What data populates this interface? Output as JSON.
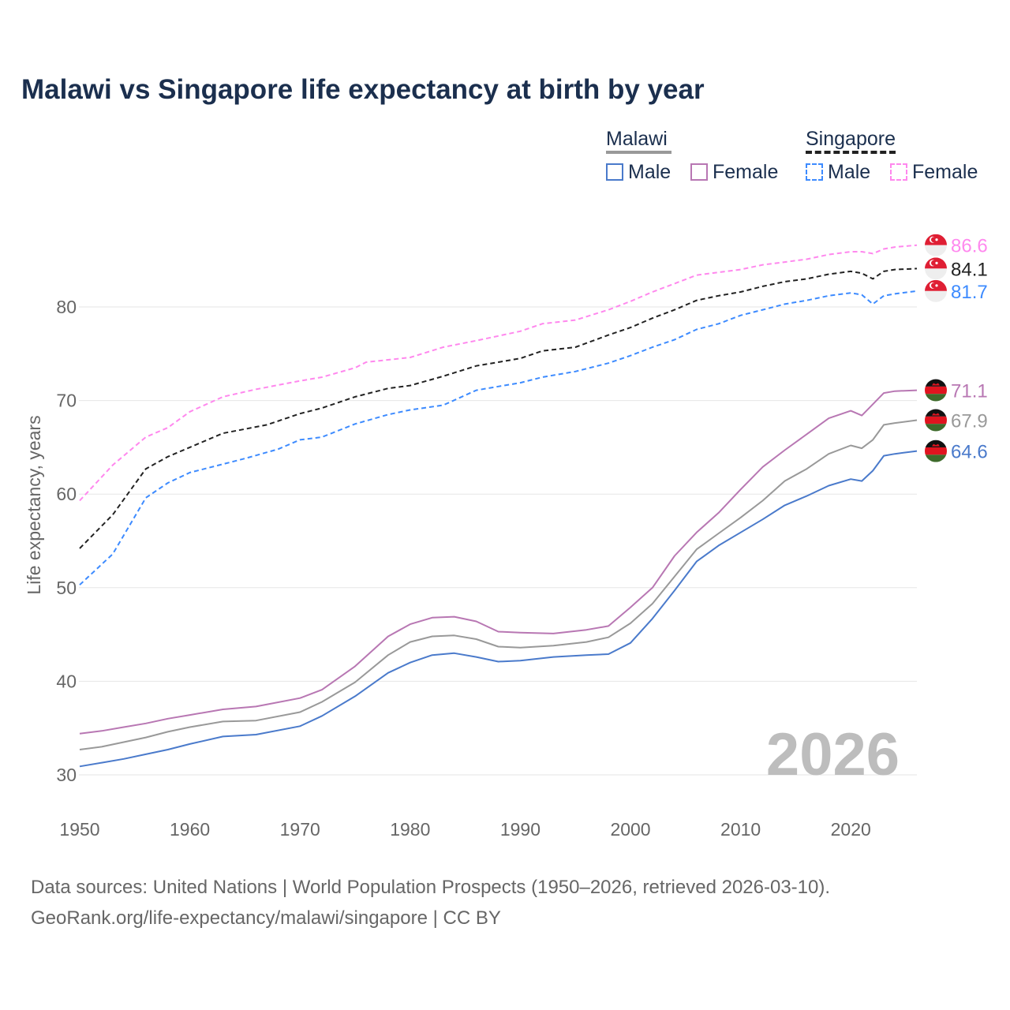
{
  "chart_data": {
    "type": "line",
    "title": "Malawi vs Singapore life expectancy at birth by year",
    "xlabel": "",
    "ylabel": "Life expectancy, years",
    "xlim": [
      1950,
      2026
    ],
    "ylim": [
      28,
      90
    ],
    "x_ticks": [
      "1950",
      "1960",
      "1970",
      "1980",
      "1990",
      "2000",
      "2010",
      "2020"
    ],
    "y_ticks": [
      "30",
      "40",
      "50",
      "60",
      "70",
      "80"
    ],
    "grid": true,
    "watermark_year": "2026",
    "legend": {
      "placement": "top-right",
      "groups": [
        {
          "name": "Malawi",
          "line_color": "#999999",
          "items": [
            "Male",
            "Female"
          ]
        },
        {
          "name": "Singapore",
          "line_color": "#222222",
          "items": [
            "Male",
            "Female"
          ]
        }
      ]
    },
    "series": [
      {
        "name": "Singapore Female",
        "country": "Singapore",
        "color": "#ff88ee",
        "dashed": true,
        "end_label": "86.6",
        "points": [
          [
            1950,
            59.3
          ],
          [
            1953,
            63.1
          ],
          [
            1956,
            66.1
          ],
          [
            1958,
            67.1
          ],
          [
            1960,
            68.8
          ],
          [
            1963,
            70.4
          ],
          [
            1966,
            71.2
          ],
          [
            1970,
            72.1
          ],
          [
            1972,
            72.5
          ],
          [
            1975,
            73.5
          ],
          [
            1976,
            74.1
          ],
          [
            1980,
            74.6
          ],
          [
            1983,
            75.7
          ],
          [
            1986,
            76.4
          ],
          [
            1988,
            76.9
          ],
          [
            1990,
            77.4
          ],
          [
            1992,
            78.2
          ],
          [
            1995,
            78.6
          ],
          [
            1998,
            79.7
          ],
          [
            2000,
            80.6
          ],
          [
            2002,
            81.6
          ],
          [
            2004,
            82.5
          ],
          [
            2006,
            83.4
          ],
          [
            2008,
            83.7
          ],
          [
            2010,
            84.0
          ],
          [
            2012,
            84.5
          ],
          [
            2014,
            84.8
          ],
          [
            2016,
            85.1
          ],
          [
            2018,
            85.6
          ],
          [
            2020,
            85.9
          ],
          [
            2021,
            85.9
          ],
          [
            2022,
            85.7
          ],
          [
            2023,
            86.2
          ],
          [
            2024,
            86.4
          ],
          [
            2026,
            86.6
          ]
        ]
      },
      {
        "name": "Singapore Total",
        "country": "Singapore",
        "color": "#222222",
        "dashed": true,
        "end_label": "84.1",
        "points": [
          [
            1950,
            54.2
          ],
          [
            1953,
            57.8
          ],
          [
            1956,
            62.7
          ],
          [
            1958,
            64.0
          ],
          [
            1960,
            65.0
          ],
          [
            1963,
            66.5
          ],
          [
            1967,
            67.4
          ],
          [
            1970,
            68.6
          ],
          [
            1972,
            69.2
          ],
          [
            1975,
            70.4
          ],
          [
            1978,
            71.3
          ],
          [
            1980,
            71.6
          ],
          [
            1983,
            72.6
          ],
          [
            1986,
            73.7
          ],
          [
            1988,
            74.1
          ],
          [
            1990,
            74.5
          ],
          [
            1992,
            75.3
          ],
          [
            1995,
            75.7
          ],
          [
            1998,
            77.0
          ],
          [
            2000,
            77.8
          ],
          [
            2002,
            78.8
          ],
          [
            2004,
            79.7
          ],
          [
            2006,
            80.7
          ],
          [
            2008,
            81.2
          ],
          [
            2010,
            81.6
          ],
          [
            2012,
            82.2
          ],
          [
            2014,
            82.7
          ],
          [
            2016,
            83.0
          ],
          [
            2018,
            83.5
          ],
          [
            2020,
            83.8
          ],
          [
            2021,
            83.6
          ],
          [
            2022,
            83.0
          ],
          [
            2023,
            83.8
          ],
          [
            2024,
            84.0
          ],
          [
            2026,
            84.1
          ]
        ]
      },
      {
        "name": "Singapore Male",
        "country": "Singapore",
        "color": "#3d8bff",
        "dashed": true,
        "end_label": "81.7",
        "points": [
          [
            1950,
            50.3
          ],
          [
            1953,
            53.6
          ],
          [
            1956,
            59.6
          ],
          [
            1958,
            61.2
          ],
          [
            1960,
            62.3
          ],
          [
            1965,
            63.8
          ],
          [
            1968,
            64.8
          ],
          [
            1970,
            65.8
          ],
          [
            1972,
            66.1
          ],
          [
            1975,
            67.5
          ],
          [
            1978,
            68.5
          ],
          [
            1980,
            69.0
          ],
          [
            1983,
            69.5
          ],
          [
            1986,
            71.1
          ],
          [
            1988,
            71.5
          ],
          [
            1990,
            71.9
          ],
          [
            1992,
            72.5
          ],
          [
            1995,
            73.1
          ],
          [
            1998,
            74.0
          ],
          [
            2000,
            74.8
          ],
          [
            2002,
            75.7
          ],
          [
            2004,
            76.5
          ],
          [
            2006,
            77.6
          ],
          [
            2008,
            78.2
          ],
          [
            2010,
            79.1
          ],
          [
            2012,
            79.7
          ],
          [
            2014,
            80.3
          ],
          [
            2016,
            80.7
          ],
          [
            2018,
            81.2
          ],
          [
            2020,
            81.5
          ],
          [
            2021,
            81.3
          ],
          [
            2022,
            80.3
          ],
          [
            2023,
            81.2
          ],
          [
            2024,
            81.4
          ],
          [
            2026,
            81.7
          ]
        ]
      },
      {
        "name": "Malawi Female",
        "country": "Malawi",
        "color": "#b877b3",
        "dashed": false,
        "end_label": "71.1",
        "points": [
          [
            1950,
            34.4
          ],
          [
            1952,
            34.7
          ],
          [
            1954,
            35.1
          ],
          [
            1956,
            35.5
          ],
          [
            1958,
            36.0
          ],
          [
            1960,
            36.4
          ],
          [
            1963,
            37.0
          ],
          [
            1966,
            37.3
          ],
          [
            1970,
            38.2
          ],
          [
            1972,
            39.1
          ],
          [
            1975,
            41.6
          ],
          [
            1978,
            44.8
          ],
          [
            1980,
            46.1
          ],
          [
            1982,
            46.8
          ],
          [
            1984,
            46.9
          ],
          [
            1986,
            46.4
          ],
          [
            1988,
            45.3
          ],
          [
            1990,
            45.2
          ],
          [
            1993,
            45.1
          ],
          [
            1996,
            45.5
          ],
          [
            1998,
            45.9
          ],
          [
            2000,
            47.9
          ],
          [
            2002,
            50.0
          ],
          [
            2004,
            53.4
          ],
          [
            2006,
            55.9
          ],
          [
            2008,
            58.0
          ],
          [
            2010,
            60.5
          ],
          [
            2012,
            62.9
          ],
          [
            2014,
            64.7
          ],
          [
            2016,
            66.4
          ],
          [
            2018,
            68.1
          ],
          [
            2020,
            68.9
          ],
          [
            2021,
            68.4
          ],
          [
            2022,
            69.6
          ],
          [
            2023,
            70.8
          ],
          [
            2024,
            71.0
          ],
          [
            2026,
            71.1
          ]
        ]
      },
      {
        "name": "Malawi Total",
        "country": "Malawi",
        "color": "#999999",
        "dashed": false,
        "end_label": "67.9",
        "points": [
          [
            1950,
            32.7
          ],
          [
            1952,
            33.0
          ],
          [
            1954,
            33.5
          ],
          [
            1956,
            34.0
          ],
          [
            1958,
            34.6
          ],
          [
            1960,
            35.1
          ],
          [
            1963,
            35.7
          ],
          [
            1966,
            35.8
          ],
          [
            1970,
            36.7
          ],
          [
            1972,
            37.8
          ],
          [
            1975,
            39.9
          ],
          [
            1978,
            42.8
          ],
          [
            1980,
            44.2
          ],
          [
            1982,
            44.8
          ],
          [
            1984,
            44.9
          ],
          [
            1986,
            44.5
          ],
          [
            1988,
            43.7
          ],
          [
            1990,
            43.6
          ],
          [
            1993,
            43.8
          ],
          [
            1996,
            44.2
          ],
          [
            1998,
            44.7
          ],
          [
            2000,
            46.2
          ],
          [
            2002,
            48.3
          ],
          [
            2004,
            51.2
          ],
          [
            2006,
            54.1
          ],
          [
            2008,
            55.8
          ],
          [
            2010,
            57.5
          ],
          [
            2012,
            59.3
          ],
          [
            2014,
            61.4
          ],
          [
            2016,
            62.7
          ],
          [
            2018,
            64.3
          ],
          [
            2020,
            65.2
          ],
          [
            2021,
            64.9
          ],
          [
            2022,
            65.8
          ],
          [
            2023,
            67.4
          ],
          [
            2024,
            67.6
          ],
          [
            2026,
            67.9
          ]
        ]
      },
      {
        "name": "Malawi Male",
        "country": "Malawi",
        "color": "#4a7acb",
        "dashed": false,
        "end_label": "64.6",
        "points": [
          [
            1950,
            30.9
          ],
          [
            1952,
            31.3
          ],
          [
            1954,
            31.7
          ],
          [
            1956,
            32.2
          ],
          [
            1958,
            32.7
          ],
          [
            1960,
            33.3
          ],
          [
            1963,
            34.1
          ],
          [
            1966,
            34.3
          ],
          [
            1970,
            35.2
          ],
          [
            1972,
            36.3
          ],
          [
            1975,
            38.4
          ],
          [
            1978,
            40.9
          ],
          [
            1980,
            42.0
          ],
          [
            1982,
            42.8
          ],
          [
            1984,
            43.0
          ],
          [
            1986,
            42.6
          ],
          [
            1988,
            42.1
          ],
          [
            1990,
            42.2
          ],
          [
            1993,
            42.6
          ],
          [
            1996,
            42.8
          ],
          [
            1998,
            42.9
          ],
          [
            2000,
            44.1
          ],
          [
            2002,
            46.7
          ],
          [
            2004,
            49.7
          ],
          [
            2006,
            52.8
          ],
          [
            2008,
            54.5
          ],
          [
            2010,
            55.9
          ],
          [
            2012,
            57.3
          ],
          [
            2014,
            58.8
          ],
          [
            2016,
            59.8
          ],
          [
            2018,
            60.9
          ],
          [
            2020,
            61.6
          ],
          [
            2021,
            61.4
          ],
          [
            2022,
            62.5
          ],
          [
            2023,
            64.1
          ],
          [
            2024,
            64.3
          ],
          [
            2026,
            64.6
          ]
        ]
      }
    ]
  },
  "footer": {
    "line1": "Data sources: United Nations | World Population Prospects (1950–2026, retrieved 2026-03-10).",
    "line2": "GeoRank.org/life-expectancy/malawi/singapore | CC BY"
  }
}
